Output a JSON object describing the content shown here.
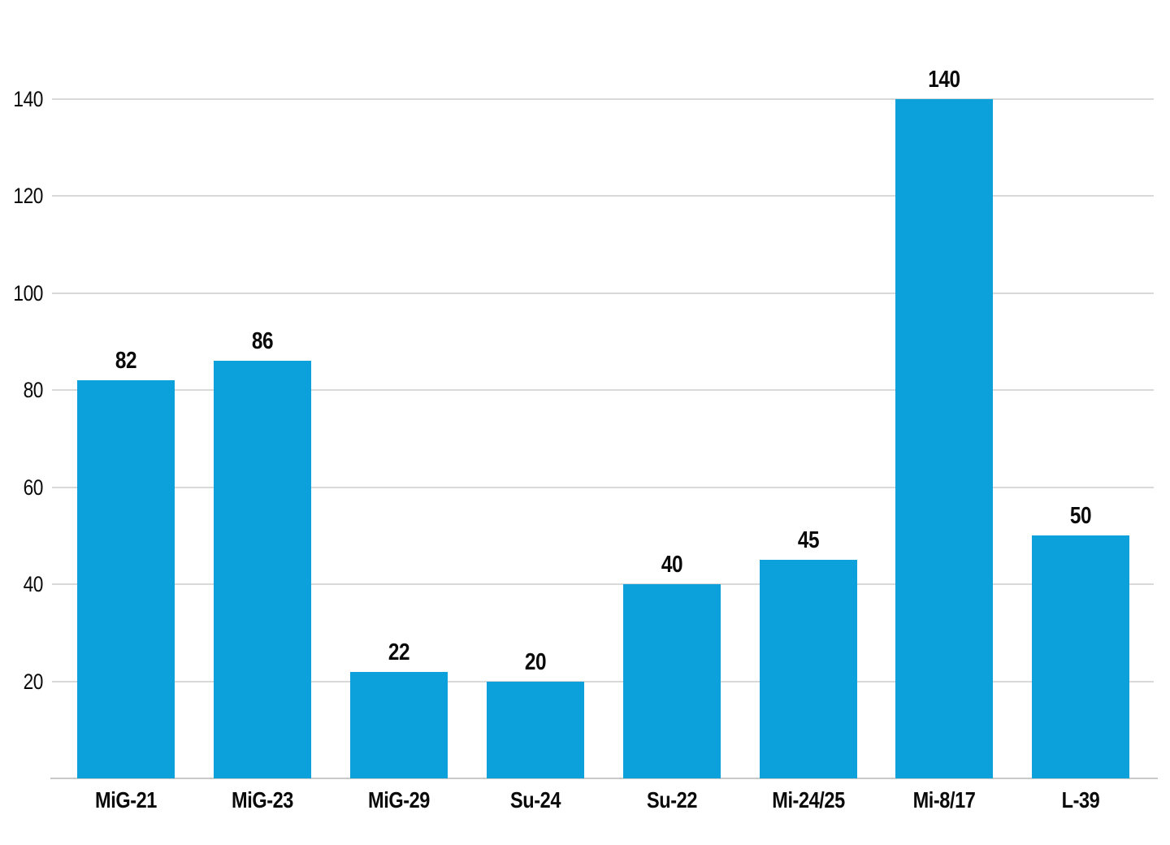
{
  "page": {
    "background_color": "#ffffff"
  },
  "chart_data": {
    "type": "bar",
    "title": "",
    "xlabel": "",
    "ylabel": "",
    "categories": [
      "MiG-21",
      "MiG-23",
      "MiG-29",
      "Su-24",
      "Su-22",
      "Mi-24/25",
      "Mi-8/17",
      "L-39"
    ],
    "values": [
      82,
      86,
      22,
      20,
      40,
      45,
      140,
      50
    ],
    "value_labels": [
      "82",
      "86",
      "22",
      "20",
      "40",
      "45",
      "140",
      "50"
    ],
    "ytick_labels": [
      "20",
      "40",
      "60",
      "80",
      "100",
      "120",
      "140"
    ],
    "yticks": [
      20,
      40,
      60,
      80,
      100,
      120,
      140
    ],
    "ylim": [
      0,
      140
    ],
    "grid": "horizontal",
    "legend": "none",
    "data_labels": "above-bars",
    "bar_color": "#0da1dc",
    "gridline_color": "#d9d9d9",
    "axis_line_color": "#c9c9c9",
    "text_color": "#0a0a0a"
  }
}
